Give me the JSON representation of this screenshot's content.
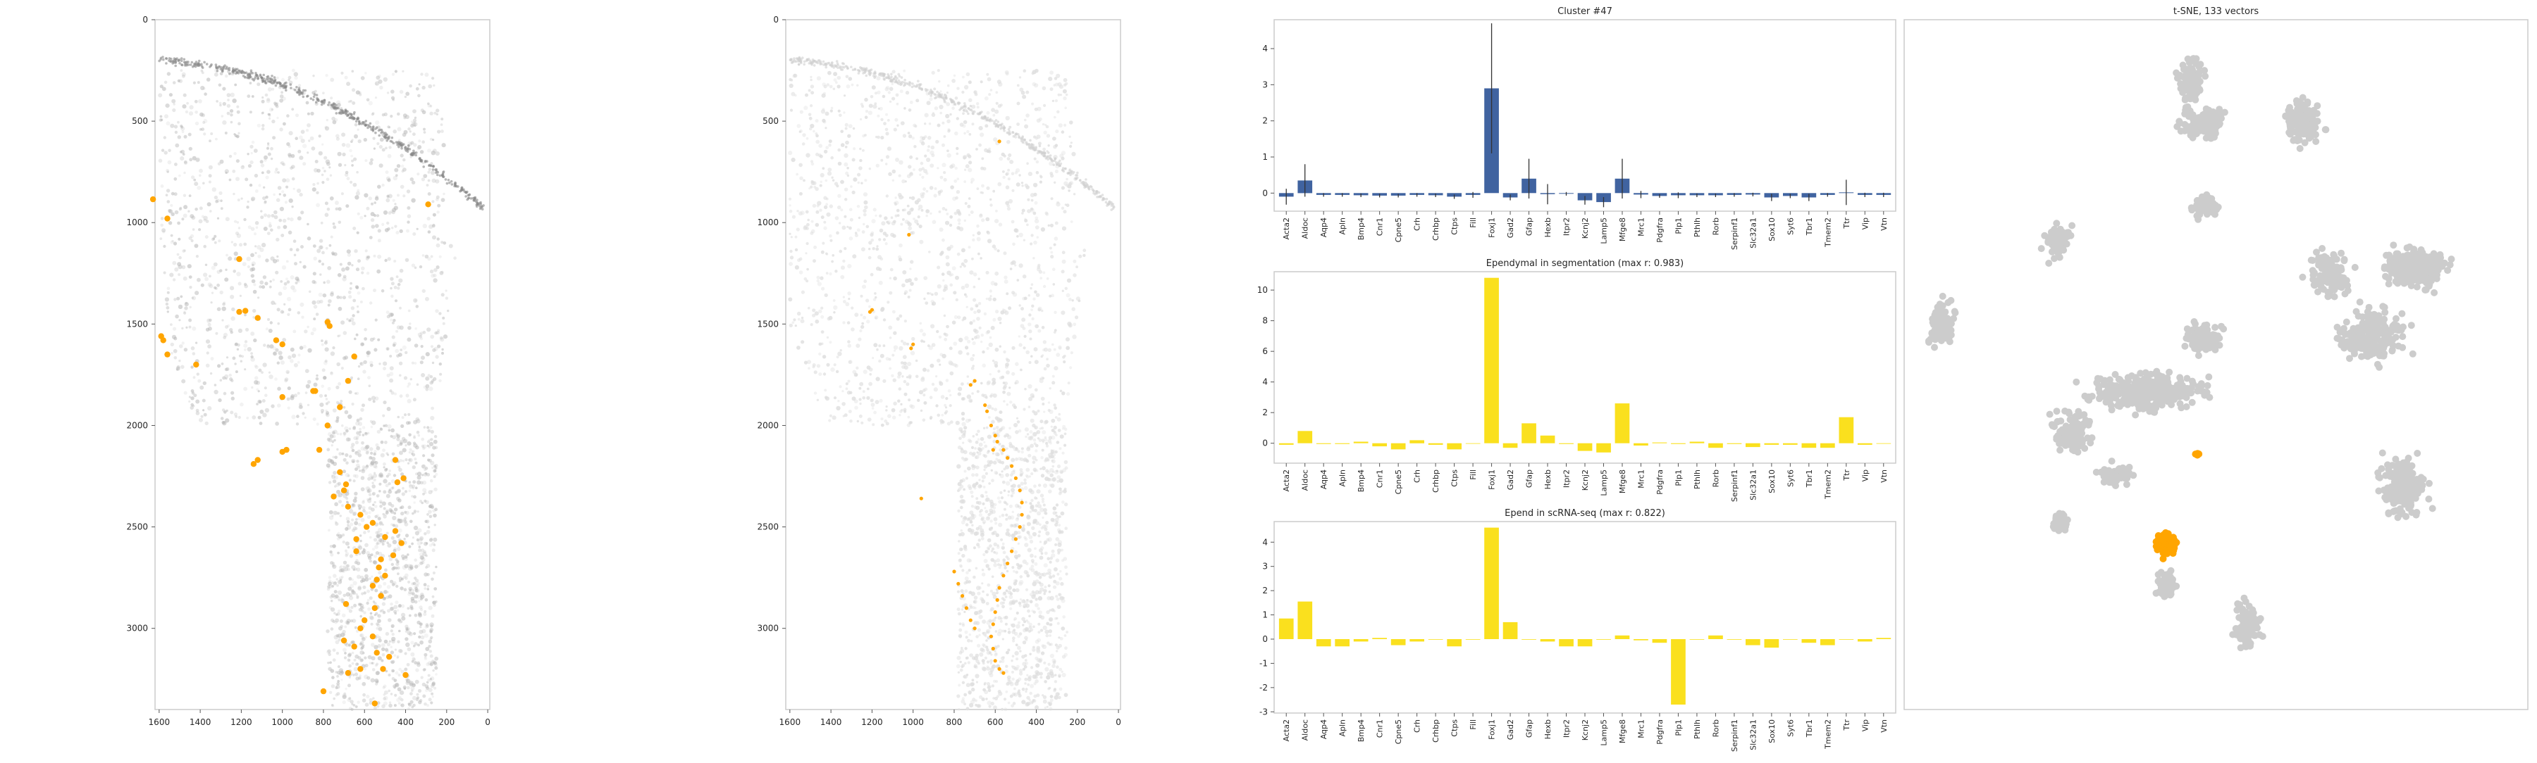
{
  "colors": {
    "highlight": "#ffa500",
    "bar_cluster": "#4063a0",
    "bar_reference": "#fae01e",
    "background_cells": "#cccccc",
    "frame": "#cccccc"
  },
  "genes": [
    "Acta2",
    "Aldoc",
    "Aqp4",
    "Apln",
    "Bmp4",
    "Cnr1",
    "Cpne5",
    "Crh",
    "Crhbp",
    "Ctps",
    "Fill",
    "Foxj1",
    "Gad2",
    "Gfap",
    "Hexb",
    "Itpr2",
    "Kcnj2",
    "Lamp5",
    "Mfge8",
    "Mrc1",
    "Pdgfra",
    "Plp1",
    "Pthlh",
    "Rorb",
    "Serpinf1",
    "Slc32a1",
    "Sox10",
    "Syt6",
    "Tbr1",
    "Tmem2",
    "Ttr",
    "Vip",
    "Vtn"
  ],
  "chart_data": [
    {
      "type": "scatter",
      "id": "spatial-all-cells",
      "title": "",
      "x_ticks": [
        "1600",
        "1400",
        "1200",
        "1000",
        "800",
        "600",
        "400",
        "200",
        "0"
      ],
      "y_ticks": [
        "0",
        "500",
        "1000",
        "1500",
        "2000",
        "2500",
        "3000"
      ],
      "xlim": [
        1620,
        -10
      ],
      "ylim": [
        0,
        3400
      ],
      "background_style": "dark-grey scattered cells",
      "series": [
        {
          "values": [
            [
              1630,
              885
            ],
            [
              1560,
              980
            ],
            [
              1210,
              1180
            ],
            [
              1180,
              1435
            ],
            [
              1210,
              1440
            ],
            [
              1120,
              1470
            ],
            [
              1590,
              1560
            ],
            [
              1580,
              1580
            ],
            [
              1030,
              1580
            ],
            [
              1000,
              1600
            ],
            [
              1560,
              1650
            ],
            [
              1420,
              1700
            ],
            [
              780,
              1490
            ],
            [
              770,
              1510
            ],
            [
              650,
              1660
            ],
            [
              680,
              1780
            ],
            [
              840,
              1830
            ],
            [
              850,
              1830
            ],
            [
              1000,
              1860
            ],
            [
              720,
              1910
            ],
            [
              780,
              2000
            ],
            [
              820,
              2120
            ],
            [
              980,
              2120
            ],
            [
              1000,
              2130
            ],
            [
              1120,
              2170
            ],
            [
              1140,
              2190
            ],
            [
              720,
              2230
            ],
            [
              450,
              2170
            ],
            [
              410,
              2260
            ],
            [
              440,
              2280
            ],
            [
              690,
              2290
            ],
            [
              700,
              2320
            ],
            [
              750,
              2350
            ],
            [
              680,
              2400
            ],
            [
              620,
              2440
            ],
            [
              560,
              2480
            ],
            [
              590,
              2500
            ],
            [
              450,
              2520
            ],
            [
              500,
              2550
            ],
            [
              640,
              2560
            ],
            [
              420,
              2580
            ],
            [
              640,
              2620
            ],
            [
              460,
              2640
            ],
            [
              520,
              2660
            ],
            [
              530,
              2700
            ],
            [
              500,
              2740
            ],
            [
              540,
              2760
            ],
            [
              560,
              2790
            ],
            [
              520,
              2840
            ],
            [
              690,
              2880
            ],
            [
              550,
              2900
            ],
            [
              600,
              2960
            ],
            [
              620,
              3000
            ],
            [
              560,
              3040
            ],
            [
              700,
              3060
            ],
            [
              650,
              3090
            ],
            [
              540,
              3120
            ],
            [
              480,
              3140
            ],
            [
              510,
              3200
            ],
            [
              620,
              3200
            ],
            [
              680,
              3220
            ],
            [
              400,
              3230
            ],
            [
              800,
              3310
            ],
            [
              550,
              3370
            ],
            [
              290,
              910
            ]
          ]
        }
      ]
    },
    {
      "type": "scatter",
      "id": "spatial-light-cells",
      "title": "",
      "x_ticks": [
        "1600",
        "1400",
        "1200",
        "1000",
        "800",
        "600",
        "400",
        "200",
        "0"
      ],
      "y_ticks": [
        "0",
        "500",
        "1000",
        "1500",
        "2000",
        "2500",
        "3000"
      ],
      "xlim": [
        1620,
        -10
      ],
      "ylim": [
        0,
        3400
      ],
      "background_style": "light-grey scattered cells",
      "series": [
        {
          "values": [
            [
              1200,
              1430
            ],
            [
              1210,
              1440
            ],
            [
              1000,
              1600
            ],
            [
              1010,
              1620
            ],
            [
              700,
              1780
            ],
            [
              720,
              1800
            ],
            [
              650,
              1900
            ],
            [
              640,
              1930
            ],
            [
              620,
              2000
            ],
            [
              600,
              2050
            ],
            [
              590,
              2080
            ],
            [
              560,
              2120
            ],
            [
              540,
              2160
            ],
            [
              520,
              2200
            ],
            [
              500,
              2260
            ],
            [
              480,
              2320
            ],
            [
              470,
              2380
            ],
            [
              470,
              2440
            ],
            [
              480,
              2500
            ],
            [
              500,
              2560
            ],
            [
              520,
              2620
            ],
            [
              540,
              2680
            ],
            [
              560,
              2740
            ],
            [
              580,
              2800
            ],
            [
              590,
              2860
            ],
            [
              600,
              2920
            ],
            [
              610,
              2980
            ],
            [
              620,
              3040
            ],
            [
              610,
              3100
            ],
            [
              600,
              3160
            ],
            [
              580,
              3200
            ],
            [
              560,
              3220
            ],
            [
              700,
              3000
            ],
            [
              720,
              2960
            ],
            [
              740,
              2900
            ],
            [
              760,
              2840
            ],
            [
              780,
              2780
            ],
            [
              800,
              2720
            ],
            [
              960,
              2360
            ],
            [
              580,
              600
            ],
            [
              1020,
              1060
            ],
            [
              610,
              2120
            ]
          ]
        }
      ]
    },
    {
      "type": "bar",
      "id": "cluster-47",
      "title": "Cluster #47",
      "categories_ref": "genes",
      "values": [
        -0.1,
        0.35,
        -0.05,
        -0.05,
        -0.06,
        -0.07,
        -0.07,
        -0.05,
        -0.06,
        -0.1,
        -0.05,
        2.9,
        -0.12,
        0.4,
        -0.03,
        -0.02,
        -0.2,
        -0.25,
        0.4,
        -0.04,
        -0.08,
        -0.06,
        -0.06,
        -0.06,
        -0.05,
        -0.04,
        -0.12,
        -0.08,
        -0.12,
        -0.05,
        0.02,
        -0.05,
        -0.05
      ],
      "errors": [
        0.22,
        0.45,
        0.05,
        0.05,
        0.05,
        0.05,
        0.05,
        0.05,
        0.05,
        0.06,
        0.08,
        1.8,
        0.08,
        0.55,
        0.28,
        0.05,
        0.12,
        0.14,
        0.55,
        0.1,
        0.05,
        0.08,
        0.05,
        0.05,
        0.05,
        0.05,
        0.1,
        0.06,
        0.1,
        0.05,
        0.35,
        0.06,
        0.06
      ],
      "ylim": [
        -0.5,
        4.8
      ],
      "yticks": [
        0,
        1,
        2,
        3,
        4
      ]
    },
    {
      "type": "bar",
      "id": "ependymal-segmentation",
      "title": "Ependymal in segmentation (max r: 0.983)",
      "categories_ref": "genes",
      "values": [
        -0.1,
        0.8,
        -0.05,
        -0.05,
        0.1,
        -0.2,
        -0.4,
        0.2,
        -0.1,
        -0.4,
        0.0,
        10.8,
        -0.3,
        1.3,
        0.5,
        -0.05,
        -0.5,
        -0.6,
        2.6,
        -0.15,
        0.05,
        -0.05,
        0.1,
        -0.3,
        -0.05,
        -0.25,
        -0.1,
        -0.1,
        -0.3,
        -0.3,
        1.7,
        -0.1,
        0.0
      ],
      "ylim": [
        -1.3,
        11.2
      ],
      "yticks": [
        0,
        2,
        4,
        6,
        8,
        10
      ]
    },
    {
      "type": "bar",
      "id": "epend-scrnaseq",
      "title": "Epend in scRNA-seq (max r: 0.822)",
      "categories_ref": "genes",
      "values": [
        0.85,
        1.55,
        -0.3,
        -0.3,
        -0.1,
        0.05,
        -0.25,
        -0.1,
        0.0,
        -0.3,
        0.0,
        4.6,
        0.7,
        0.0,
        -0.1,
        -0.3,
        -0.3,
        0.0,
        0.15,
        -0.05,
        -0.15,
        -2.7,
        0.0,
        0.15,
        0.0,
        -0.25,
        -0.35,
        0.0,
        -0.15,
        -0.25,
        0.0,
        -0.1,
        0.05
      ],
      "ylim": [
        -3.05,
        4.85
      ],
      "yticks": [
        -3,
        -2,
        -1,
        0,
        1,
        2,
        3,
        4
      ]
    },
    {
      "type": "scatter",
      "id": "tsne",
      "title": "t-SNE, 133 vectors",
      "xlim": [
        0,
        100
      ],
      "ylim": [
        0,
        100
      ],
      "clusters": [
        {
          "cx": 46,
          "cy": 9,
          "rx": 3.5,
          "ry": 6,
          "n": 110
        },
        {
          "cx": 48,
          "cy": 15,
          "rx": 6,
          "ry": 4,
          "n": 120
        },
        {
          "cx": 64,
          "cy": 15,
          "rx": 5,
          "ry": 5,
          "n": 130
        },
        {
          "cx": 48,
          "cy": 27,
          "rx": 4,
          "ry": 3,
          "n": 50
        },
        {
          "cx": 25,
          "cy": 32,
          "rx": 4,
          "ry": 4,
          "n": 80
        },
        {
          "cx": 6,
          "cy": 44,
          "rx": 4,
          "ry": 6,
          "n": 100
        },
        {
          "cx": 68,
          "cy": 37,
          "rx": 6,
          "ry": 6,
          "n": 120
        },
        {
          "cx": 82,
          "cy": 36,
          "rx": 9,
          "ry": 5,
          "n": 240
        },
        {
          "cx": 75,
          "cy": 46,
          "rx": 9,
          "ry": 7,
          "n": 220
        },
        {
          "cx": 39,
          "cy": 54,
          "rx": 16,
          "ry": 5,
          "n": 300
        },
        {
          "cx": 48,
          "cy": 46,
          "rx": 5,
          "ry": 4,
          "n": 90
        },
        {
          "cx": 27,
          "cy": 60,
          "rx": 6,
          "ry": 6,
          "n": 110
        },
        {
          "cx": 34,
          "cy": 66,
          "rx": 5,
          "ry": 3,
          "n": 60
        },
        {
          "cx": 80,
          "cy": 68,
          "rx": 6,
          "ry": 7,
          "n": 200
        },
        {
          "cx": 25,
          "cy": 73,
          "rx": 2.5,
          "ry": 2.5,
          "n": 40
        },
        {
          "cx": 42,
          "cy": 82,
          "rx": 3,
          "ry": 3,
          "n": 60
        },
        {
          "cx": 55,
          "cy": 88,
          "rx": 4,
          "ry": 6,
          "n": 110
        }
      ],
      "highlight_clusters": [
        {
          "cx": 42,
          "cy": 76,
          "rx": 3,
          "ry": 2.5,
          "n": 90
        },
        {
          "cx": 47,
          "cy": 63,
          "rx": 0.6,
          "ry": 0.6,
          "n": 4
        }
      ]
    }
  ]
}
